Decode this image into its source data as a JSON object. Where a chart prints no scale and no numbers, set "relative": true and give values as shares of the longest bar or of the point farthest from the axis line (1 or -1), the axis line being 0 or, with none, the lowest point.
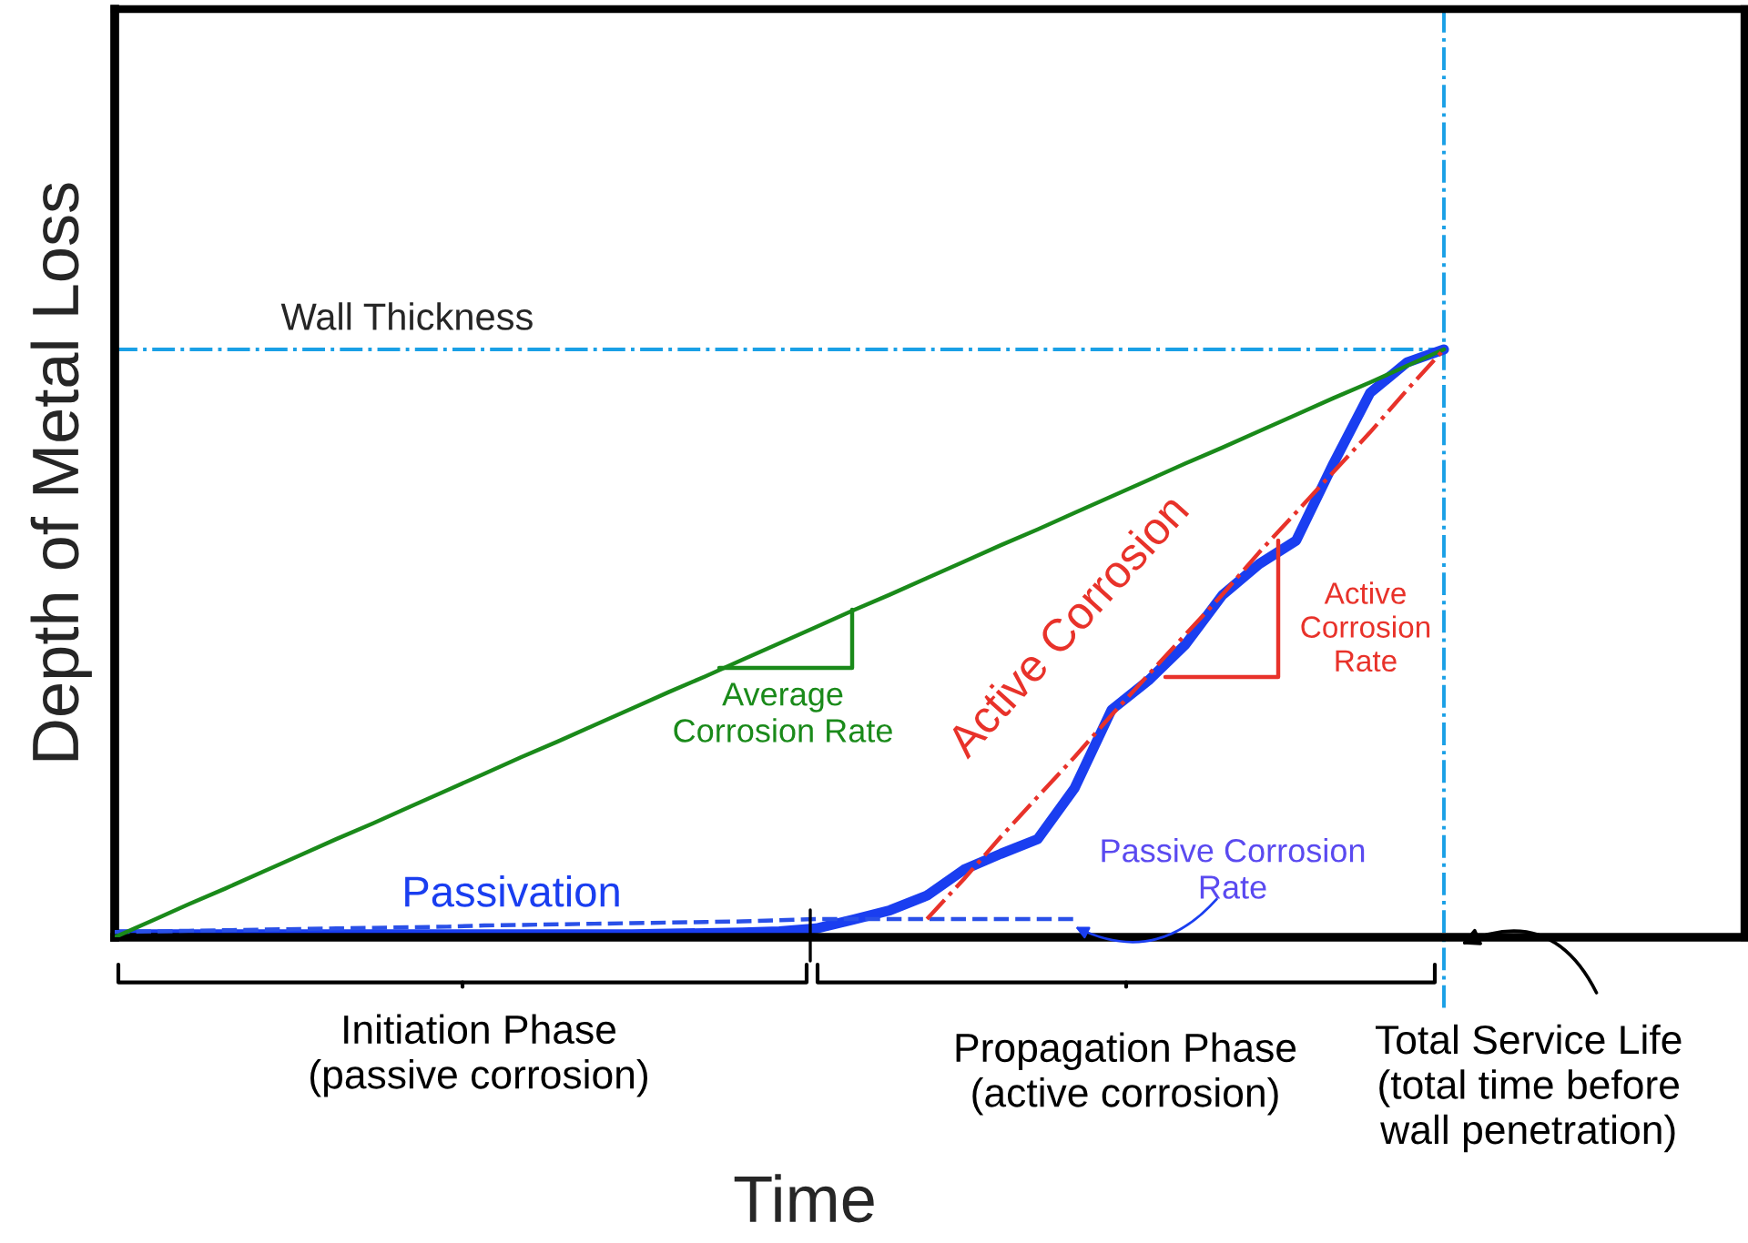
{
  "chart_data": {
    "type": "line",
    "relative": true,
    "xlabel": "Time",
    "ylabel": "Depth of Metal Loss",
    "categories": [
      null,
      null,
      null,
      null,
      null,
      null,
      null,
      null,
      null,
      null,
      null,
      null,
      null,
      null,
      null,
      null,
      null,
      null,
      null,
      null,
      null,
      null,
      null,
      null,
      null,
      null,
      null,
      null,
      null,
      null,
      null,
      null,
      null,
      null,
      null,
      null,
      null
    ],
    "series": [
      {
        "color": "#1a3ef0",
        "line_style": "solid",
        "values": [
          0.005,
          0.005,
          0.005,
          0.005,
          0.005,
          0.005,
          0.005,
          0.005,
          0.005,
          0.005,
          0.005,
          0.005,
          0.005,
          0.005,
          0.005,
          0.006,
          0.007,
          0.008,
          0.01,
          0.015,
          0.03,
          0.046,
          0.071,
          0.115,
          0.142,
          0.167,
          0.254,
          0.387,
          0.437,
          0.498,
          0.582,
          0.635,
          0.675,
          0.805,
          0.926,
          0.978,
          1.0
        ]
      },
      {
        "color": "#2a50e8",
        "line_style": "dashed",
        "values": [
          0.009,
          0.01,
          0.011,
          0.012,
          0.013,
          0.014,
          0.015,
          0.016,
          0.017,
          0.018,
          0.02,
          0.021,
          0.022,
          0.023,
          0.024,
          0.025,
          0.026,
          0.027,
          0.029,
          0.031,
          0.031,
          0.031,
          0.031,
          0.031,
          0.031,
          0.031,
          0.031,
          null,
          null,
          null,
          null,
          null,
          null,
          null,
          null,
          null,
          null
        ]
      },
      {
        "color": "#1a8a1a",
        "line_style": "solid",
        "values": [
          0.0,
          0.028,
          0.056,
          0.083,
          0.111,
          0.139,
          0.167,
          0.194,
          0.222,
          0.25,
          0.278,
          0.306,
          0.333,
          0.361,
          0.389,
          0.417,
          0.444,
          0.472,
          0.5,
          0.528,
          0.556,
          0.583,
          0.611,
          0.639,
          0.667,
          0.694,
          0.722,
          0.75,
          0.778,
          0.806,
          0.833,
          0.861,
          0.889,
          0.917,
          0.944,
          0.972,
          1.0
        ]
      },
      {
        "color": "#e8322a",
        "line_style": "dashdot",
        "values": [
          null,
          null,
          null,
          null,
          null,
          null,
          null,
          null,
          null,
          null,
          null,
          null,
          null,
          null,
          null,
          null,
          null,
          null,
          null,
          null,
          null,
          null,
          0.031,
          0.099,
          0.171,
          0.239,
          0.307,
          0.378,
          0.447,
          0.515,
          0.583,
          0.655,
          0.723,
          0.791,
          0.859,
          0.931,
          1.0
        ]
      }
    ],
    "ref_lines": [
      {
        "axis": "y",
        "value": 1.0,
        "label": "Wall Thickness",
        "color": "#1aa0e6",
        "line_style": "dashdot"
      }
    ],
    "annotations": [
      "Average\nCorrosion Rate",
      "Active Corrosion",
      "Active\nCorrosion\nRate",
      "Passivation",
      "Passive Corrosion\nRate",
      "Initiation Phase\n(passive corrosion)",
      "Propagation Phase\n(active corrosion)",
      "Total Service Life\n(total time before\nwall penetration)"
    ],
    "legend": false
  }
}
